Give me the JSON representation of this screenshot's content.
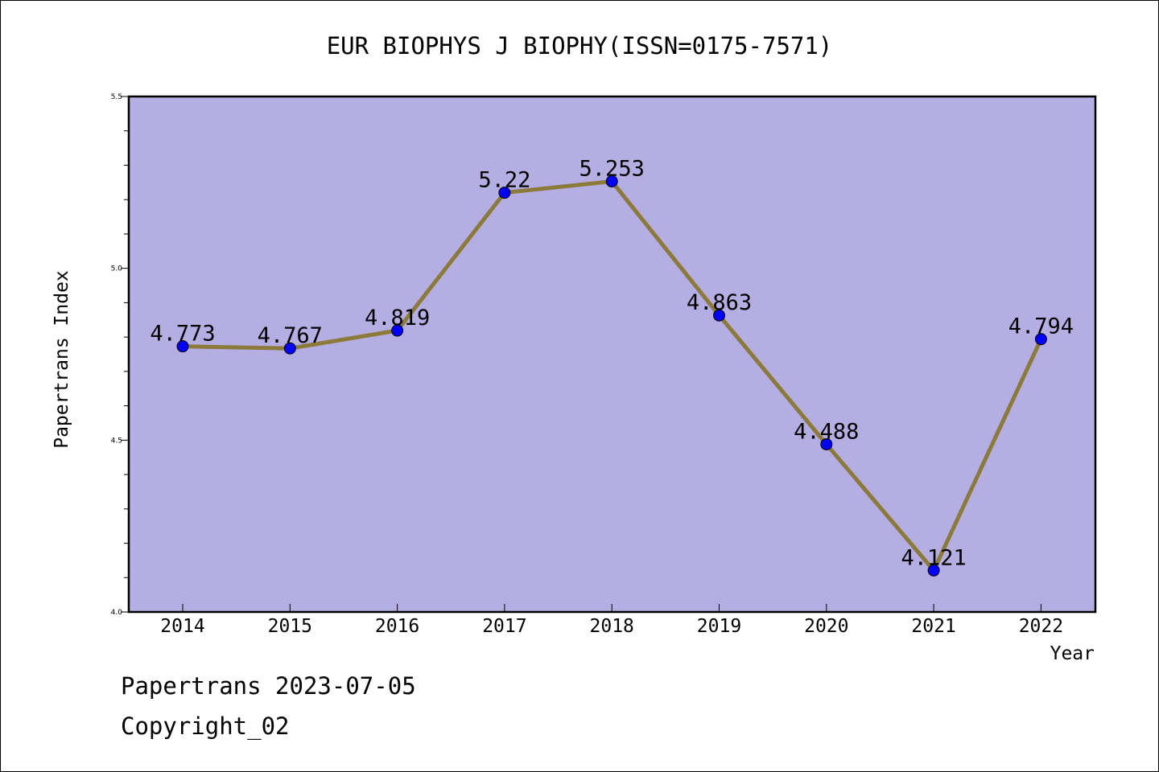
{
  "chart_data": {
    "type": "line",
    "title": "EUR BIOPHYS J BIOPHY(ISSN=0175-7571)",
    "xlabel": "Year",
    "ylabel": "Papertrans Index",
    "categories": [
      "2014",
      "2015",
      "2016",
      "2017",
      "2018",
      "2019",
      "2020",
      "2021",
      "2022"
    ],
    "series": [
      {
        "values": [
          4.773,
          4.767,
          4.819,
          5.22,
          5.253,
          4.863,
          4.488,
          4.121,
          4.794
        ],
        "labels": [
          "4.773",
          "4.767",
          "4.819",
          "5.22",
          "5.253",
          "4.863",
          "4.488",
          "4.121",
          "4.794"
        ],
        "line_color": "#8b7a3a",
        "marker_color": "#0000ff"
      }
    ],
    "ylim": [
      4.0,
      5.5
    ],
    "yticks": [
      "4.0",
      "4.5",
      "5.0",
      "5.5"
    ],
    "plot_background": "#b4aee2",
    "grid": false,
    "legend": "none"
  },
  "footer": {
    "line1": "Papertrans 2023-07-05",
    "line2": "Copyright_02"
  }
}
